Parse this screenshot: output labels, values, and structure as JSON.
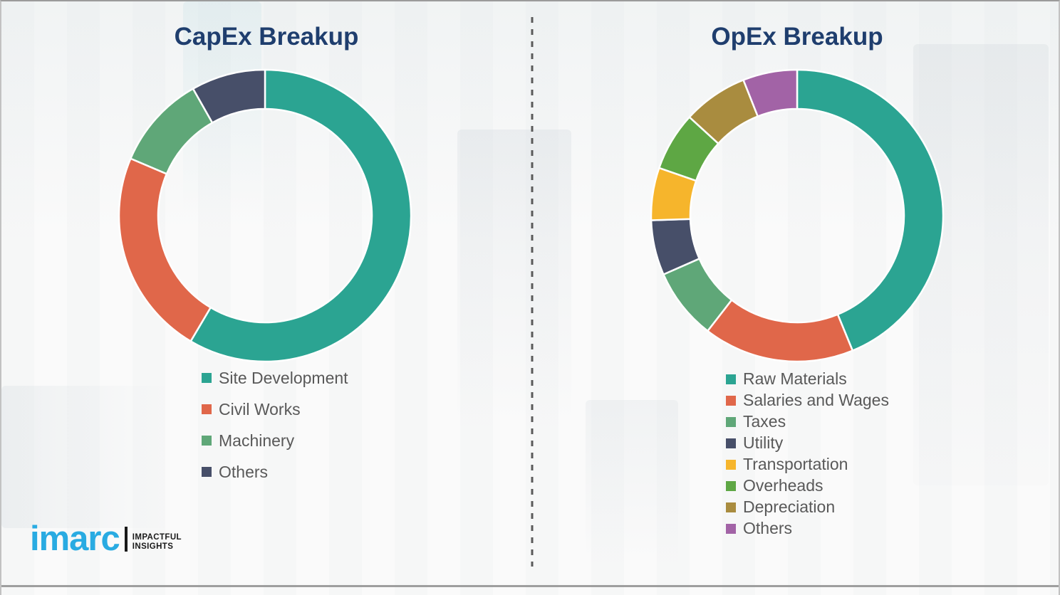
{
  "left_panel": {
    "title": "CapEx Breakup"
  },
  "right_panel": {
    "title": "OpEx Breakup"
  },
  "chart_data": [
    {
      "type": "pie",
      "subtype": "donut",
      "title": "CapEx Breakup",
      "labels": [
        "Site Development",
        "Civil Works",
        "Machinery",
        "Others"
      ],
      "values_percent": [
        58.5,
        22.9,
        10.4,
        8.2
      ],
      "colors": [
        "#2BA492",
        "#E0674A",
        "#5FA778",
        "#474F69"
      ],
      "start_angle_deg": 0,
      "direction": "clockwise",
      "legend_position": "below-left",
      "data_labels_shown": false
    },
    {
      "type": "pie",
      "subtype": "donut",
      "title": "OpEx Breakup",
      "labels": [
        "Raw Materials",
        "Salaries and Wages",
        "Taxes",
        "Utility",
        "Transportation",
        "Overheads",
        "Depreciation",
        "Others"
      ],
      "values_percent": [
        43.8,
        16.7,
        7.9,
        6.1,
        5.8,
        6.5,
        7.2,
        6.0
      ],
      "colors": [
        "#2BA492",
        "#E0674A",
        "#5FA778",
        "#474F69",
        "#F6B52C",
        "#5EA744",
        "#A98C3F",
        "#A263A6"
      ],
      "start_angle_deg": 0,
      "direction": "clockwise",
      "legend_position": "below-left",
      "data_labels_shown": false
    }
  ],
  "branding": {
    "logo_text": "imarc",
    "tagline_line1": "IMPACTFUL",
    "tagline_line2": "INSIGHTS",
    "logo_color": "#29ABE2"
  },
  "styles": {
    "title_color": "#1F3E6E",
    "legend_text_color": "#595959",
    "divider_color": "#5A5A5A"
  }
}
